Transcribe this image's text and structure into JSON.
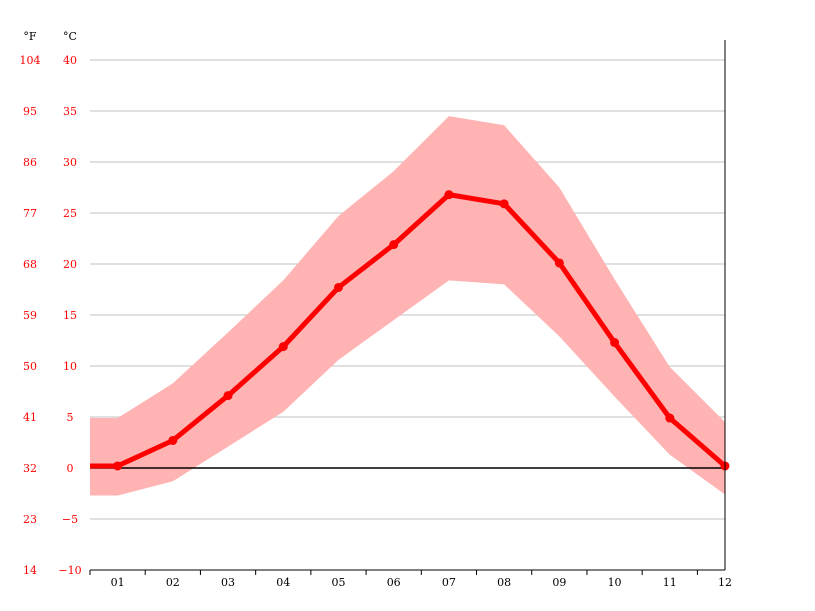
{
  "chart_data": {
    "type": "line",
    "title": "",
    "xlabel": "",
    "ylabel": "",
    "units": {
      "left": "°F",
      "right": "°C"
    },
    "categories": [
      "01",
      "02",
      "03",
      "04",
      "05",
      "06",
      "07",
      "08",
      "09",
      "10",
      "11",
      "12"
    ],
    "ylim": [
      -10,
      40
    ],
    "yticks_c": [
      40,
      35,
      30,
      25,
      20,
      15,
      10,
      5,
      0,
      -5,
      -10
    ],
    "yticks_f": [
      104,
      95,
      86,
      77,
      68,
      59,
      50,
      41,
      32,
      23,
      14
    ],
    "series": [
      {
        "values": [
          0.2,
          2.7,
          7.1,
          11.9,
          17.7,
          21.9,
          26.8,
          25.9,
          20.1,
          12.3,
          4.9,
          0.2
        ]
      }
    ],
    "range_band": {
      "min": [
        -2.7,
        -1.3,
        2.1,
        5.5,
        10.6,
        14.5,
        18.4,
        18.0,
        12.9,
        7.0,
        1.3,
        -2.6
      ],
      "max": [
        4.9,
        8.3,
        13.3,
        18.4,
        24.7,
        29.1,
        34.5,
        33.6,
        27.5,
        18.5,
        9.9,
        4.5
      ]
    },
    "grid": true,
    "colors": {
      "line": "#ff0000",
      "band": "#ffb3b3",
      "grid": "#c0c0c0",
      "axis": "#000000",
      "label": "#ff0000"
    }
  }
}
